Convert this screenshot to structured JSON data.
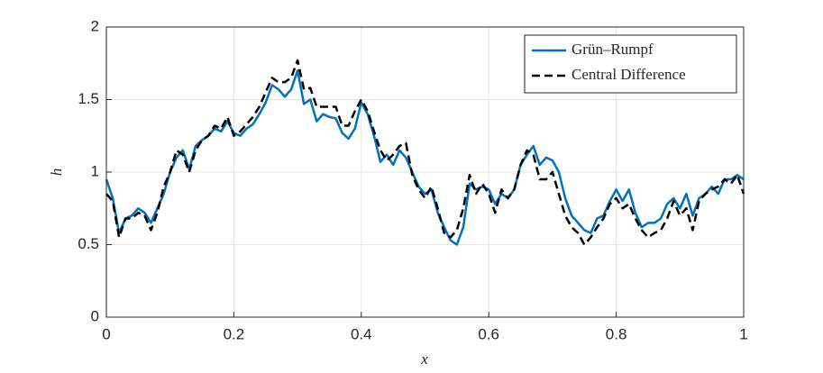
{
  "chart_data": {
    "type": "line",
    "xlabel": "x",
    "ylabel": "h",
    "x": [
      0,
      0.01,
      0.02,
      0.03,
      0.04,
      0.05,
      0.06,
      0.07,
      0.08,
      0.09,
      0.1,
      0.11,
      0.12,
      0.13,
      0.14,
      0.15,
      0.16,
      0.17,
      0.18,
      0.19,
      0.2,
      0.21,
      0.22,
      0.23,
      0.24,
      0.25,
      0.26,
      0.27,
      0.28,
      0.29,
      0.3,
      0.31,
      0.32,
      0.33,
      0.34,
      0.35,
      0.36,
      0.37,
      0.38,
      0.39,
      0.4,
      0.41,
      0.42,
      0.43,
      0.44,
      0.45,
      0.46,
      0.47,
      0.48,
      0.49,
      0.5,
      0.51,
      0.52,
      0.53,
      0.54,
      0.55,
      0.56,
      0.57,
      0.58,
      0.59,
      0.6,
      0.61,
      0.62,
      0.63,
      0.64,
      0.65,
      0.66,
      0.67,
      0.68,
      0.69,
      0.7,
      0.71,
      0.72,
      0.73,
      0.74,
      0.75,
      0.76,
      0.77,
      0.78,
      0.79,
      0.8,
      0.81,
      0.82,
      0.83,
      0.84,
      0.85,
      0.86,
      0.87,
      0.88,
      0.89,
      0.9,
      0.91,
      0.92,
      0.93,
      0.94,
      0.95,
      0.96,
      0.97,
      0.98,
      0.99,
      1
    ],
    "series": [
      {
        "name": "Grün–Rumpf",
        "color": "#0072bd",
        "dash": false,
        "values": [
          0.95,
          0.82,
          0.58,
          0.68,
          0.7,
          0.75,
          0.72,
          0.65,
          0.75,
          0.85,
          1.0,
          1.1,
          1.15,
          1.02,
          1.18,
          1.22,
          1.25,
          1.3,
          1.28,
          1.35,
          1.27,
          1.25,
          1.3,
          1.33,
          1.4,
          1.48,
          1.6,
          1.57,
          1.52,
          1.57,
          1.7,
          1.47,
          1.5,
          1.35,
          1.4,
          1.38,
          1.37,
          1.27,
          1.23,
          1.3,
          1.48,
          1.4,
          1.25,
          1.07,
          1.12,
          1.05,
          1.15,
          1.1,
          1.0,
          0.9,
          0.85,
          0.88,
          0.72,
          0.62,
          0.53,
          0.5,
          0.62,
          0.92,
          0.88,
          0.9,
          0.88,
          0.78,
          0.85,
          0.82,
          0.88,
          1.05,
          1.12,
          1.18,
          1.05,
          1.1,
          1.08,
          1.0,
          0.82,
          0.7,
          0.65,
          0.6,
          0.58,
          0.68,
          0.7,
          0.8,
          0.88,
          0.8,
          0.88,
          0.72,
          0.62,
          0.65,
          0.65,
          0.68,
          0.78,
          0.82,
          0.75,
          0.85,
          0.7,
          0.82,
          0.85,
          0.9,
          0.85,
          0.95,
          0.95,
          0.98,
          0.95
        ]
      },
      {
        "name": "Central Difference",
        "color": "#000000",
        "dash": true,
        "values": [
          0.85,
          0.8,
          0.55,
          0.68,
          0.68,
          0.72,
          0.7,
          0.6,
          0.72,
          0.9,
          1.0,
          1.15,
          1.12,
          1.0,
          1.15,
          1.22,
          1.25,
          1.32,
          1.3,
          1.38,
          1.25,
          1.28,
          1.33,
          1.38,
          1.45,
          1.55,
          1.65,
          1.62,
          1.62,
          1.65,
          1.77,
          1.57,
          1.58,
          1.45,
          1.45,
          1.45,
          1.45,
          1.32,
          1.32,
          1.42,
          1.5,
          1.42,
          1.28,
          1.15,
          1.08,
          1.12,
          1.18,
          1.2,
          0.98,
          0.88,
          0.82,
          0.9,
          0.75,
          0.58,
          0.55,
          0.6,
          0.75,
          0.98,
          0.85,
          0.92,
          0.85,
          0.72,
          0.88,
          0.82,
          0.88,
          1.05,
          1.15,
          1.12,
          0.95,
          0.95,
          1.0,
          0.85,
          0.7,
          0.62,
          0.58,
          0.5,
          0.55,
          0.62,
          0.68,
          0.78,
          0.82,
          0.75,
          0.78,
          0.68,
          0.6,
          0.55,
          0.58,
          0.6,
          0.68,
          0.8,
          0.7,
          0.75,
          0.6,
          0.8,
          0.85,
          0.88,
          0.9,
          0.95,
          0.92,
          0.98,
          0.85
        ]
      }
    ],
    "xlim": [
      0,
      1
    ],
    "xticks": [
      0,
      0.2,
      0.4,
      0.6,
      0.8,
      1
    ],
    "ylim": [
      0,
      2
    ],
    "yticks": [
      0,
      0.5,
      1,
      1.5,
      2
    ],
    "grid": true,
    "legend": "top-right"
  }
}
